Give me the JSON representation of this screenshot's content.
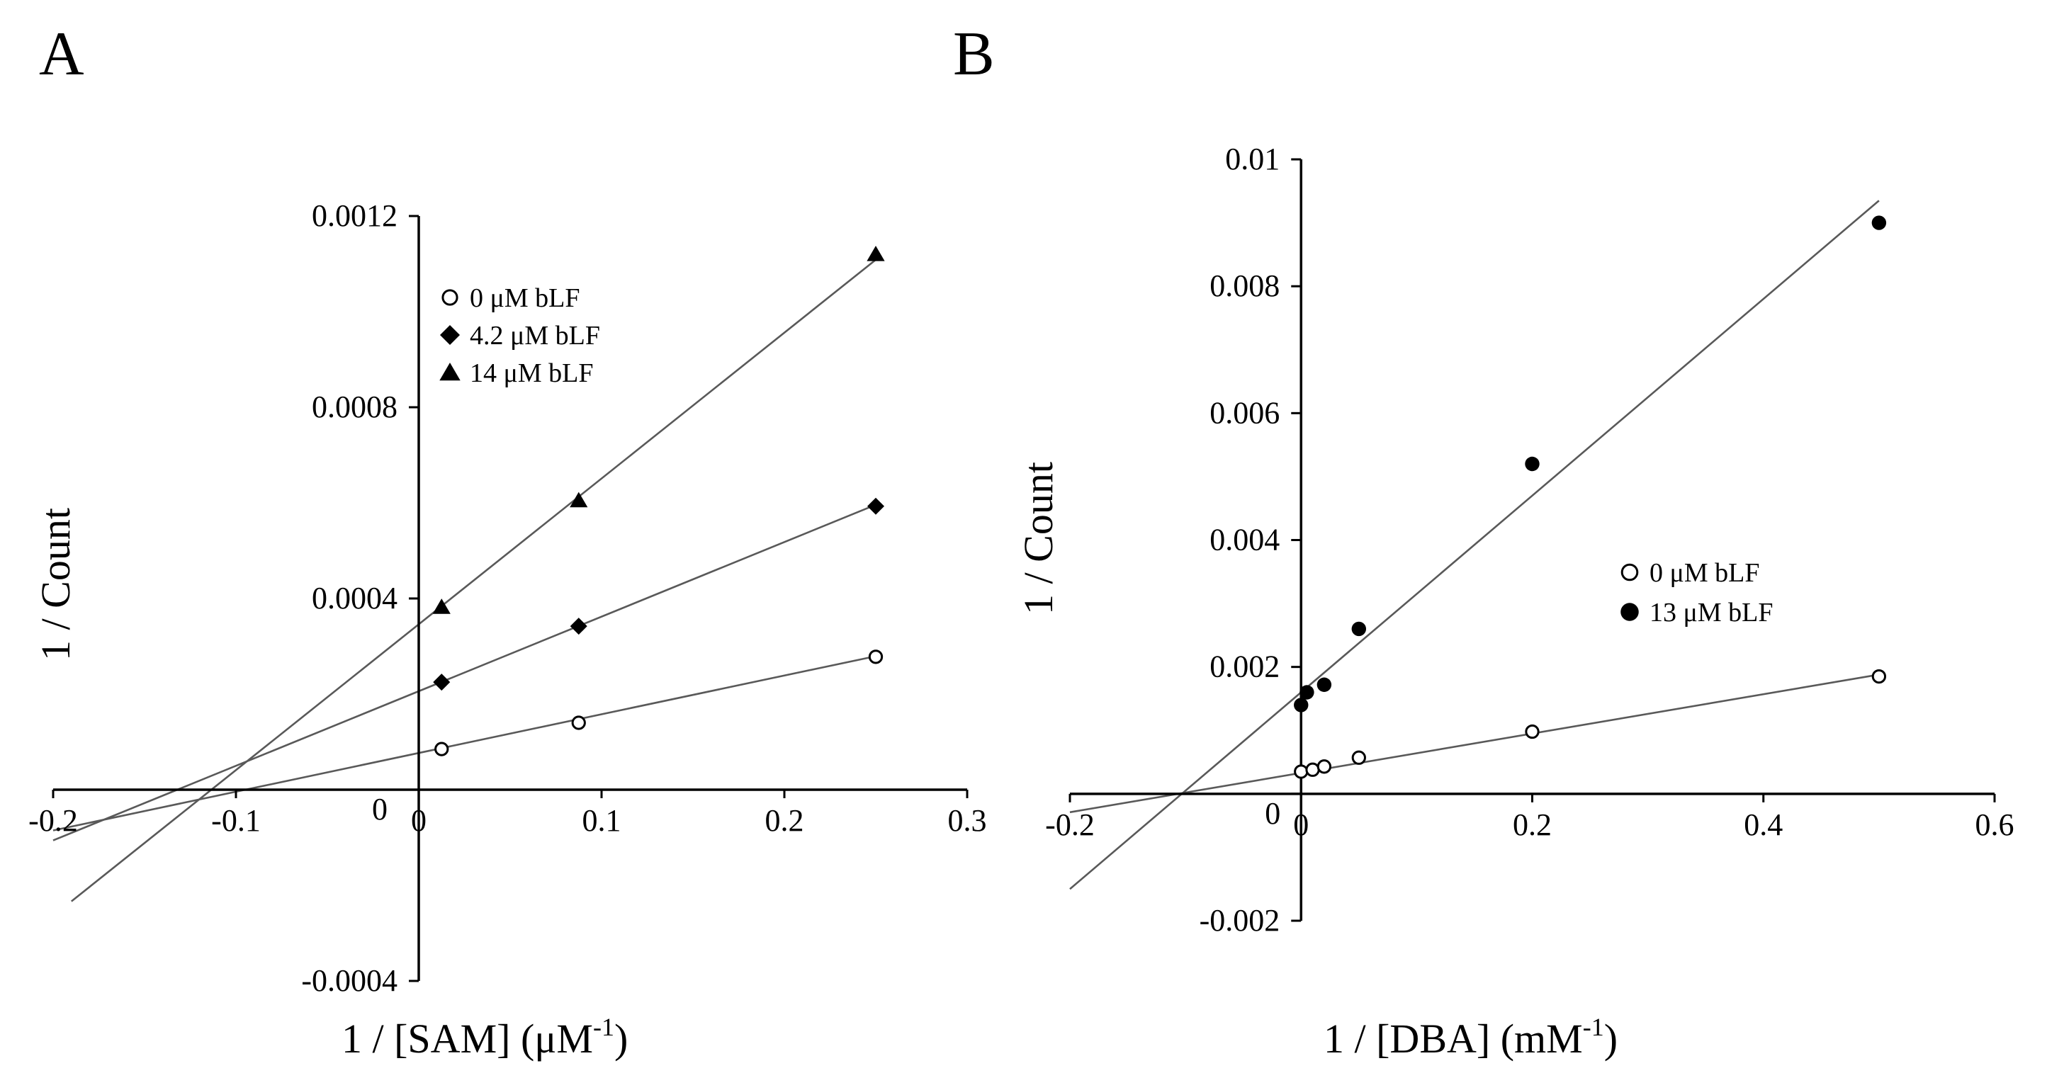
{
  "colors": {
    "line": "#595959",
    "axis": "#000000",
    "marker": "#000000"
  },
  "chart_data": [
    {
      "panel": "A",
      "type": "scatter",
      "xlabel": "1 / [SAM]",
      "xunit": "(μM",
      "xunit_exp": "-1",
      "xunit_close": ")",
      "ylabel": "1 / Count",
      "xlim": [
        -0.2,
        0.3
      ],
      "ylim": [
        -0.0004,
        0.0012
      ],
      "x_ticks": [
        -0.2,
        -0.1,
        0,
        0.1,
        0.2,
        0.3
      ],
      "x_tick_labels": [
        "-0.2",
        "-0.1",
        "0",
        "0.1",
        "0.2",
        "0.3"
      ],
      "y_ticks": [
        -0.0004,
        0,
        0.0004,
        0.0008,
        0.0012
      ],
      "y_tick_labels": [
        "-0.0004",
        "0",
        "0.0004",
        "0.0008",
        "0.0012"
      ],
      "legend_position": "upper-left",
      "series": [
        {
          "name": "0  μM bLF",
          "marker": "open-circle",
          "x": [
            0.0125,
            0.0875,
            0.25
          ],
          "y": [
            8.5e-05,
            0.00014,
            0.000278
          ],
          "fit": {
            "x_start": -0.2,
            "x_end": 0.25,
            "slope": 0.00081,
            "intercept": 7.68e-05
          }
        },
        {
          "name": "4.2 μM bLF",
          "marker": "diamond",
          "x": [
            0.0125,
            0.0875,
            0.25
          ],
          "y": [
            0.000225,
            0.000342,
            0.000593
          ],
          "fit": {
            "x_start": -0.2,
            "x_end": 0.25,
            "slope": 0.00156,
            "intercept": 0.000206
          }
        },
        {
          "name": "14  μM bLF",
          "marker": "triangle",
          "x": [
            0.0125,
            0.0875,
            0.25
          ],
          "y": [
            0.000382,
            0.000605,
            0.00112
          ],
          "fit": {
            "x_start": -0.19,
            "x_end": 0.25,
            "slope": 0.00305,
            "intercept": 0.000346
          }
        }
      ]
    },
    {
      "panel": "B",
      "type": "scatter",
      "xlabel": "1 / [DBA]",
      "xunit": "(mM",
      "xunit_exp": "-1",
      "xunit_close": ")",
      "ylabel": "1 / Count",
      "xlim": [
        -0.2,
        0.6
      ],
      "ylim": [
        -0.002,
        0.01
      ],
      "x_ticks": [
        -0.2,
        0,
        0.2,
        0.4,
        0.6
      ],
      "x_tick_labels": [
        "-0.2",
        "0",
        "0.2",
        "0.4",
        "0.6"
      ],
      "y_ticks": [
        -0.002,
        0,
        0.002,
        0.004,
        0.006,
        0.008,
        0.01
      ],
      "y_tick_labels": [
        "-0.002",
        "0",
        "0.002",
        "0.004",
        "0.006",
        "0.008",
        "0.01"
      ],
      "legend_position": "middle-right",
      "series": [
        {
          "name": "0  μM bLF",
          "marker": "open-circle",
          "x": [
            0.0,
            0.01,
            0.02,
            0.05,
            0.2,
            0.5
          ],
          "y": [
            0.00035,
            0.00038,
            0.00043,
            0.00057,
            0.00098,
            0.00185
          ],
          "fit": {
            "x_start": -0.2,
            "x_end": 0.5,
            "slope": 0.0031,
            "intercept": 0.00033
          }
        },
        {
          "name": "13 μM bLF",
          "marker": "filled-circle",
          "x": [
            0.0,
            0.005,
            0.02,
            0.05,
            0.2,
            0.5
          ],
          "y": [
            0.0014,
            0.0016,
            0.00172,
            0.0026,
            0.0052,
            0.009
          ],
          "fit": {
            "x_start": -0.2,
            "x_end": 0.5,
            "slope": 0.0155,
            "intercept": 0.0016
          }
        }
      ]
    }
  ]
}
